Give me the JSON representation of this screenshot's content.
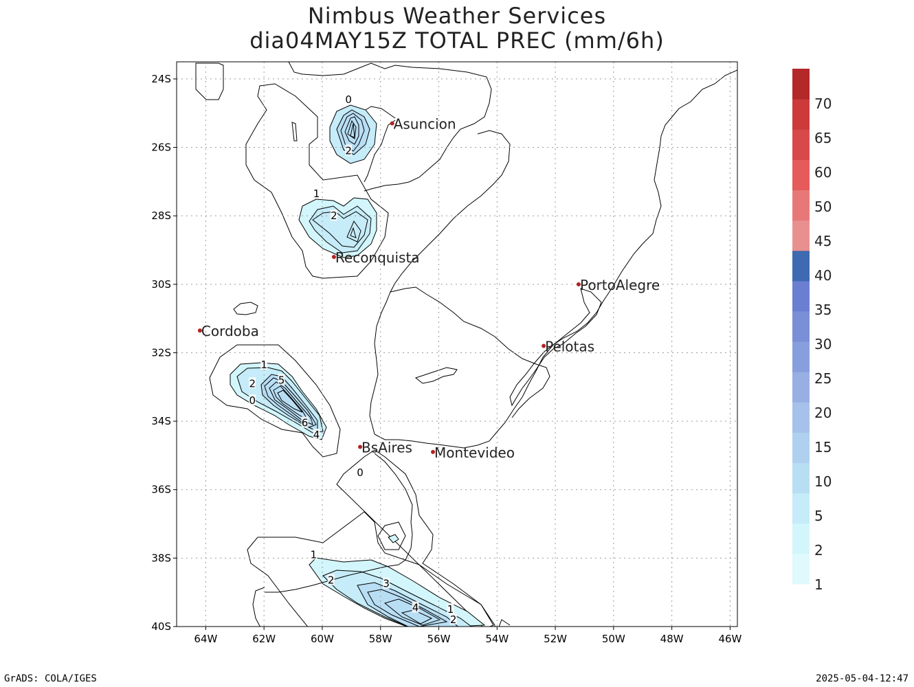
{
  "title": {
    "line1": "Nimbus Weather Services",
    "line2": "dia04MAY15Z TOTAL PREC (mm/6h)"
  },
  "footer": {
    "left": "GrADS: COLA/IGES",
    "right": "2025-05-04-12:47"
  },
  "map": {
    "lat_ticks": [
      "24S",
      "26S",
      "28S",
      "30S",
      "32S",
      "34S",
      "36S",
      "38S",
      "40S"
    ],
    "lon_ticks": [
      "64W",
      "62W",
      "60W",
      "58W",
      "56W",
      "54W",
      "52W",
      "50W",
      "48W",
      "46W"
    ],
    "lat_range": [
      -40,
      -23.5
    ],
    "lon_range": [
      -65,
      -45.75
    ],
    "cities": [
      {
        "name": "Asuncion",
        "lon": -57.6,
        "lat": -25.3
      },
      {
        "name": "Reconquista",
        "lon": -59.6,
        "lat": -29.2
      },
      {
        "name": "PortoAlegre",
        "lon": -51.2,
        "lat": -30.0
      },
      {
        "name": "Cordoba",
        "lon": -64.2,
        "lat": -31.35
      },
      {
        "name": "Pelotas",
        "lon": -52.4,
        "lat": -31.8
      },
      {
        "name": "BsAires",
        "lon": -58.7,
        "lat": -34.75
      },
      {
        "name": "Montevideo",
        "lon": -56.2,
        "lat": -34.9
      }
    ],
    "city_color": "#b22222",
    "contour_labels": [
      {
        "text": "0",
        "lon": -59.1,
        "lat": -24.6
      },
      {
        "text": "2",
        "lon": -59.1,
        "lat": -26.1
      },
      {
        "text": "1",
        "lon": -60.2,
        "lat": -27.35
      },
      {
        "text": "2",
        "lon": -59.6,
        "lat": -28.0
      },
      {
        "text": "1",
        "lon": -62.0,
        "lat": -32.35
      },
      {
        "text": "2",
        "lon": -62.4,
        "lat": -32.9
      },
      {
        "text": "5",
        "lon": -61.4,
        "lat": -32.8
      },
      {
        "text": "0",
        "lon": -62.4,
        "lat": -33.4
      },
      {
        "text": "6",
        "lon": -60.6,
        "lat": -34.05
      },
      {
        "text": "4",
        "lon": -60.2,
        "lat": -34.4
      },
      {
        "text": "0",
        "lon": -58.7,
        "lat": -35.5
      },
      {
        "text": "1",
        "lon": -60.3,
        "lat": -37.9
      },
      {
        "text": "2",
        "lon": -59.7,
        "lat": -38.65
      },
      {
        "text": "3",
        "lon": -57.8,
        "lat": -38.75
      },
      {
        "text": "4",
        "lon": -56.8,
        "lat": -39.45
      },
      {
        "text": "1",
        "lon": -55.6,
        "lat": -39.5
      },
      {
        "text": "2",
        "lon": -55.5,
        "lat": -39.8
      }
    ]
  },
  "colorbar": {
    "labels": [
      "1",
      "2",
      "5",
      "10",
      "15",
      "20",
      "25",
      "30",
      "35",
      "40",
      "45",
      "50",
      "60",
      "65",
      "70"
    ],
    "colors": [
      "#dff9fd",
      "#d2f6fb",
      "#c5ecf8",
      "#b8def4",
      "#b0d0ef",
      "#a6c1ea",
      "#98afe3",
      "#889fdd",
      "#7b8fd7",
      "#6b7fd2",
      "#3d6ab0",
      "#e89090",
      "#e87878",
      "#e55a5a",
      "#d84a4a",
      "#cc3a3a",
      "#b32828"
    ]
  }
}
